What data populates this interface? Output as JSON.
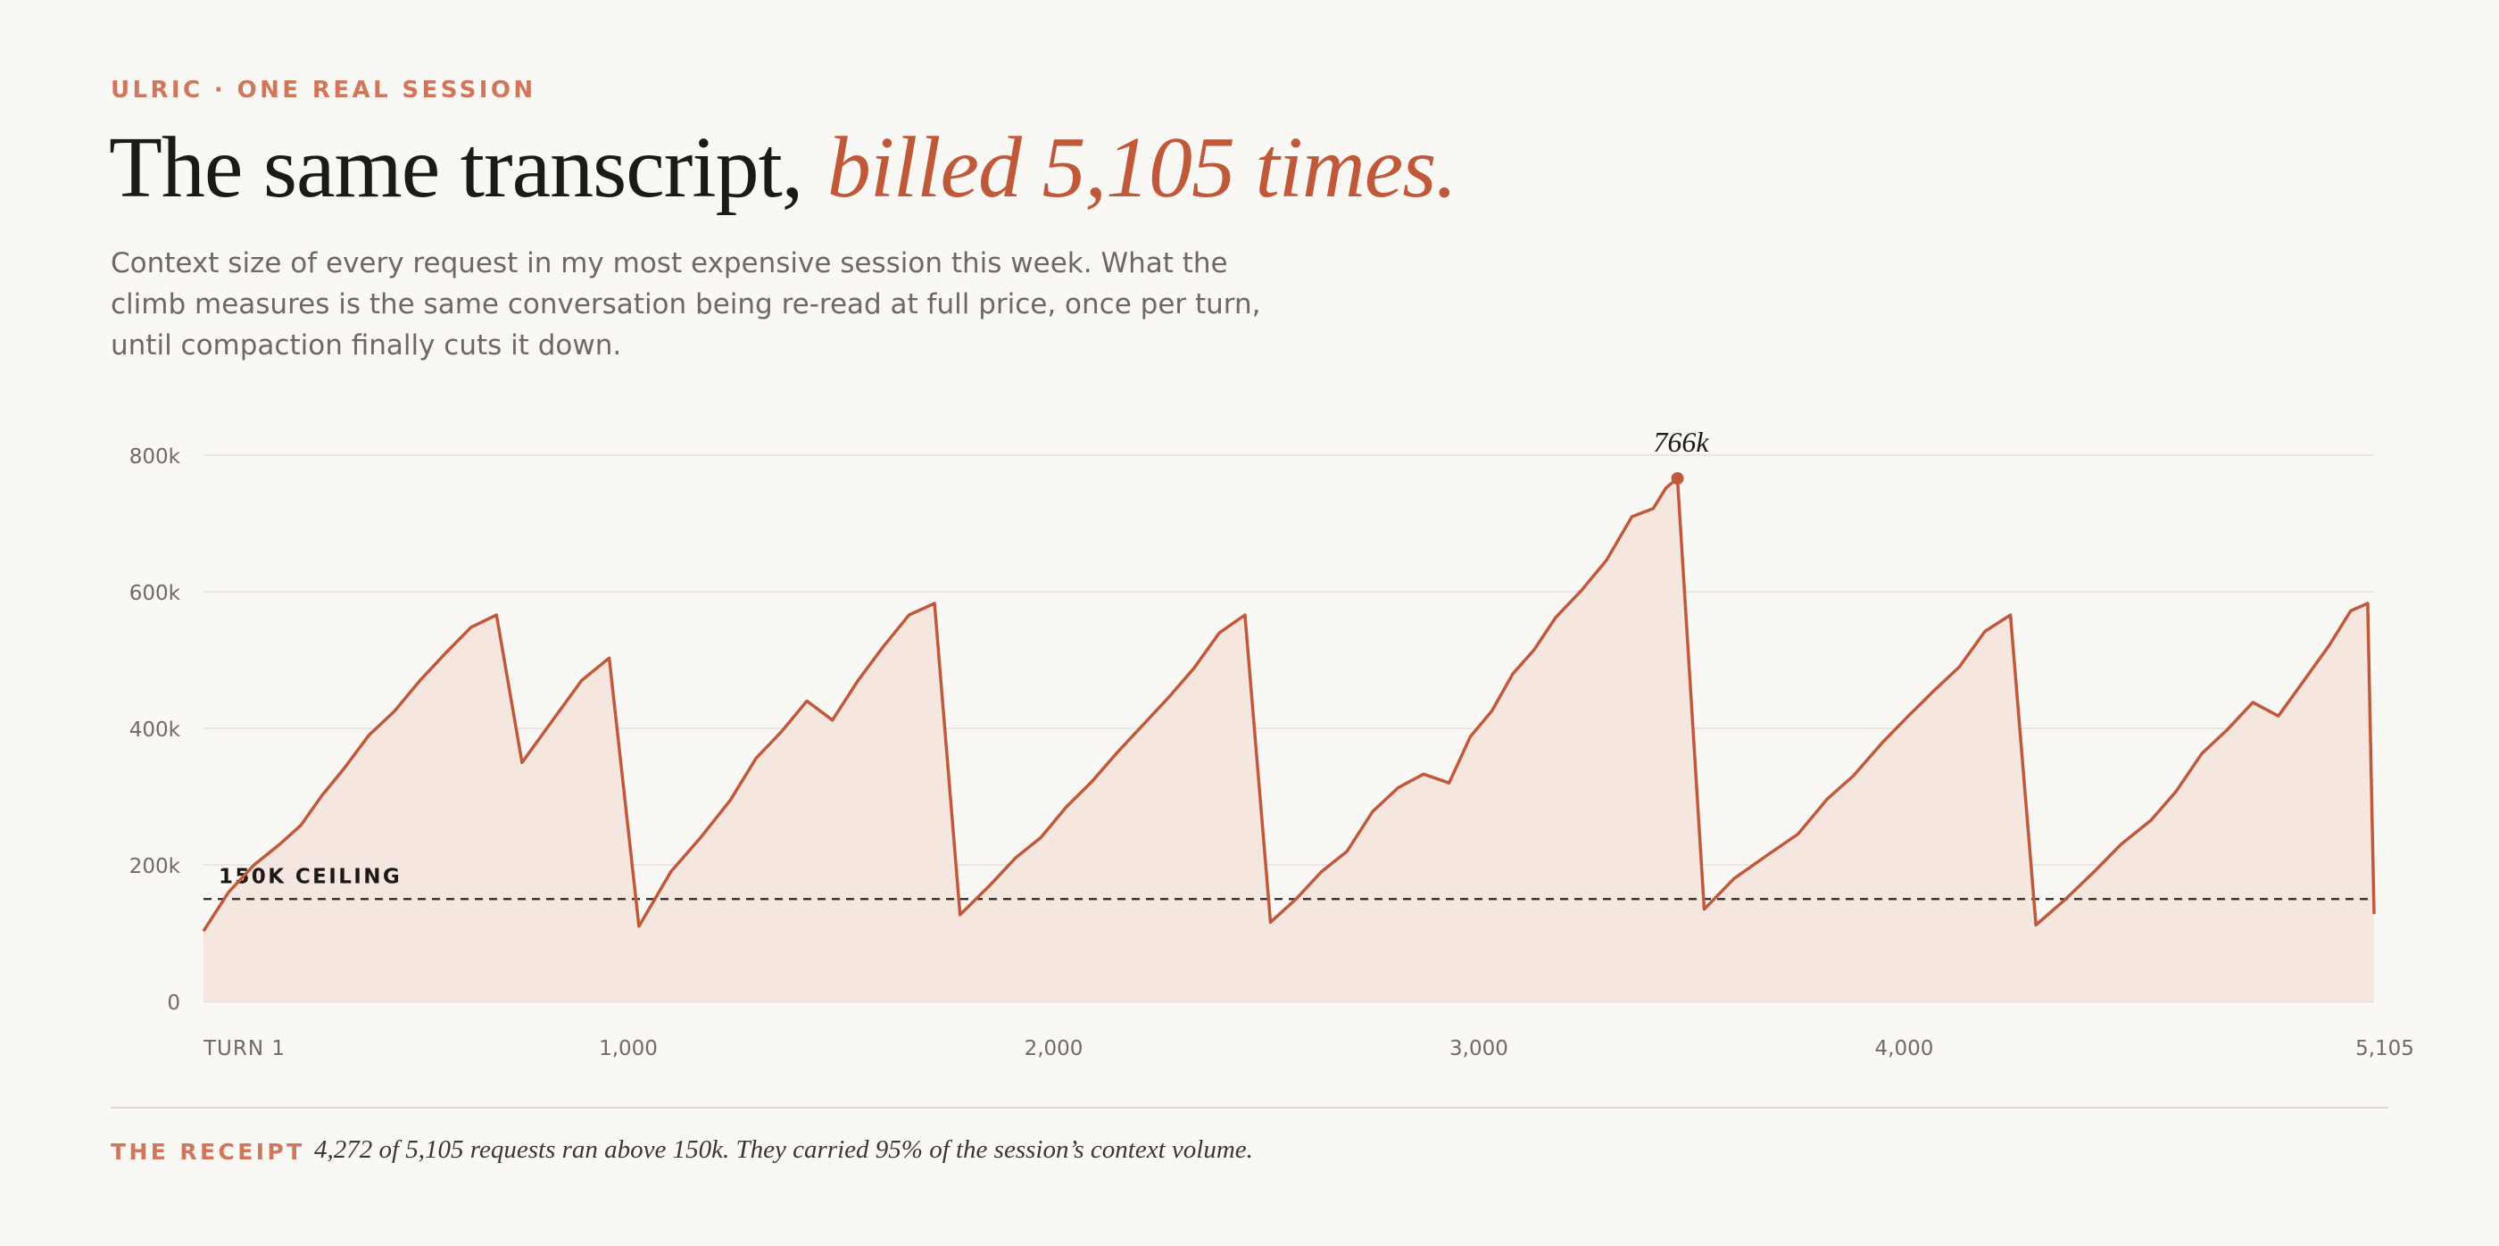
{
  "header": {
    "eyebrow": "ULRIC · ONE REAL SESSION",
    "title_main": "The same transcript,",
    "title_accent": "billed 5,105 times.",
    "dek": "Context size of every request in my most expensive session this week. What the climb measures is the same conversation being re-read at full price, once per turn, until compaction finally cuts it down."
  },
  "footer": {
    "label": "THE RECEIPT",
    "text": "4,272 of 5,105 requests ran above 150k. They carried 95% of the session’s context volume."
  },
  "colors": {
    "accent": "#c0593a",
    "accent_light": "#d0765a",
    "fill": "#f6e6e0",
    "background": "#faf8f5"
  },
  "chart_data": {
    "type": "area",
    "title": "",
    "xlabel": "",
    "ylabel": "",
    "xlim": [
      1,
      5105
    ],
    "ylim": [
      0,
      800000
    ],
    "grid": true,
    "y_ticks": [
      {
        "value": 0,
        "label": "0"
      },
      {
        "value": 200000,
        "label": "200k"
      },
      {
        "value": 400000,
        "label": "400k"
      },
      {
        "value": 600000,
        "label": "600k"
      },
      {
        "value": 800000,
        "label": "800k"
      }
    ],
    "x_ticks": [
      {
        "value": 1,
        "label": "TURN 1"
      },
      {
        "value": 1000,
        "label": "1,000"
      },
      {
        "value": 2000,
        "label": "2,000"
      },
      {
        "value": 3000,
        "label": "3,000"
      },
      {
        "value": 4000,
        "label": "4,000"
      },
      {
        "value": 5105,
        "label": "5,105"
      }
    ],
    "threshold": {
      "value": 150000,
      "label": "150K CEILING"
    },
    "peak": {
      "x": 3467,
      "y": 766000,
      "label": "766k"
    },
    "series": [
      {
        "values": [
          [
            1,
            103000
          ],
          [
            60,
            160000
          ],
          [
            120,
            200000
          ],
          [
            180,
            230000
          ],
          [
            230,
            258000
          ],
          [
            280,
            302000
          ],
          [
            330,
            340000
          ],
          [
            390,
            390000
          ],
          [
            450,
            425000
          ],
          [
            510,
            470000
          ],
          [
            570,
            510000
          ],
          [
            630,
            548000
          ],
          [
            690,
            566000
          ],
          [
            750,
            350000
          ],
          [
            820,
            410000
          ],
          [
            890,
            470000
          ],
          [
            955,
            503000
          ],
          [
            1025,
            110000
          ],
          [
            1100,
            190000
          ],
          [
            1170,
            240000
          ],
          [
            1240,
            295000
          ],
          [
            1300,
            356000
          ],
          [
            1360,
            395000
          ],
          [
            1420,
            440000
          ],
          [
            1480,
            412000
          ],
          [
            1540,
            470000
          ],
          [
            1600,
            520000
          ],
          [
            1660,
            566000
          ],
          [
            1720,
            583000
          ],
          [
            1780,
            127000
          ],
          [
            1850,
            170000
          ],
          [
            1910,
            210000
          ],
          [
            1970,
            240000
          ],
          [
            2030,
            285000
          ],
          [
            2090,
            322000
          ],
          [
            2150,
            365000
          ],
          [
            2210,
            405000
          ],
          [
            2270,
            445000
          ],
          [
            2330,
            488000
          ],
          [
            2390,
            540000
          ],
          [
            2450,
            566000
          ],
          [
            2510,
            116000
          ],
          [
            2570,
            150000
          ],
          [
            2630,
            190000
          ],
          [
            2690,
            220000
          ],
          [
            2750,
            278000
          ],
          [
            2810,
            313000
          ],
          [
            2870,
            333000
          ],
          [
            2930,
            320000
          ],
          [
            2980,
            388000
          ],
          [
            3030,
            425000
          ],
          [
            3080,
            480000
          ],
          [
            3130,
            515000
          ],
          [
            3180,
            562000
          ],
          [
            3240,
            601000
          ],
          [
            3300,
            646000
          ],
          [
            3360,
            710000
          ],
          [
            3410,
            722000
          ],
          [
            3440,
            752000
          ],
          [
            3467,
            766000
          ],
          [
            3530,
            135000
          ],
          [
            3600,
            180000
          ],
          [
            3680,
            215000
          ],
          [
            3750,
            245000
          ],
          [
            3820,
            297000
          ],
          [
            3880,
            330000
          ],
          [
            3950,
            380000
          ],
          [
            4010,
            418000
          ],
          [
            4070,
            455000
          ],
          [
            4130,
            490000
          ],
          [
            4190,
            542000
          ],
          [
            4250,
            566000
          ],
          [
            4310,
            112000
          ],
          [
            4380,
            150000
          ],
          [
            4450,
            192000
          ],
          [
            4510,
            230000
          ],
          [
            4580,
            265000
          ],
          [
            4640,
            308000
          ],
          [
            4700,
            363000
          ],
          [
            4760,
            398000
          ],
          [
            4820,
            438000
          ],
          [
            4880,
            418000
          ],
          [
            4940,
            470000
          ],
          [
            5000,
            522000
          ],
          [
            5050,
            572000
          ],
          [
            5090,
            583000
          ],
          [
            5105,
            128000
          ]
        ]
      }
    ]
  }
}
